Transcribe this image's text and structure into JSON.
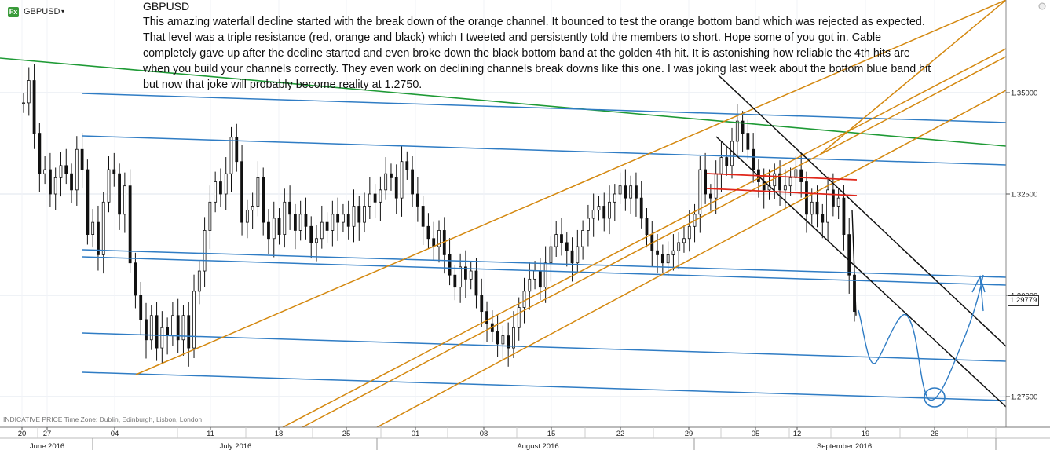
{
  "header": {
    "badge": "Fx",
    "symbol": "GBPUSD",
    "caret": "▾"
  },
  "annotation": {
    "title": "GBPUSD",
    "body": "This amazing waterfall decline started with the break down of the orange channel. It bounced to test the orange bottom band which was rejected as expected. That level was a triple resistance (red, orange and black) which I tweeted and persistently told the members to short. Hope some of you got in. Cable completely gave up after the decline started and even broke down the black bottom band at the golden 4th hit. It is astonishing how reliable the 4th hits are when you build your channels correctly. They even work on declining channels break downs like this one. I was joking last week about the bottom blue band hit but now that joke will probably become reality at 1.2750."
  },
  "footer": {
    "note": "INDICATIVE PRICE   Time Zone: Dublin, Edinburgh, Lisbon, London"
  },
  "price_flag": "1.29779",
  "colors": {
    "blue": "#2f7cc4",
    "orange": "#d4880f",
    "green": "#1e9a35",
    "red": "#e0261a",
    "black": "#111111",
    "candle": "#111111",
    "grid": "#dfe5ee"
  },
  "chart_data": {
    "type": "line",
    "title": "GBPUSD",
    "y_axis": {
      "ticks": [
        "1.35000",
        "1.32500",
        "1.30000",
        "1.27500"
      ],
      "ylim": [
        1.2678,
        1.365
      ]
    },
    "x_axis": {
      "day_ticks": [
        "20",
        "27",
        "04",
        "11",
        "18",
        "25",
        "01",
        "08",
        "15",
        "22",
        "29",
        "05",
        "12",
        "19",
        "26"
      ],
      "months": [
        "June 2016",
        "July 2016",
        "August 2016",
        "September 2016"
      ]
    },
    "close_series": [
      1.3475,
      1.353,
      1.34,
      1.33,
      1.331,
      1.325,
      1.329,
      1.332,
      1.33,
      1.326,
      1.336,
      1.331,
      1.315,
      1.318,
      1.31,
      1.323,
      1.331,
      1.33,
      1.32,
      1.327,
      1.308,
      1.3,
      1.294,
      1.289,
      1.295,
      1.287,
      1.292,
      1.29,
      1.295,
      1.289,
      1.295,
      1.287,
      1.301,
      1.306,
      1.316,
      1.323,
      1.328,
      1.325,
      1.33,
      1.339,
      1.333,
      1.318,
      1.321,
      1.322,
      1.329,
      1.318,
      1.314,
      1.319,
      1.315,
      1.323,
      1.32,
      1.316,
      1.32,
      1.317,
      1.313,
      1.314,
      1.318,
      1.316,
      1.32,
      1.318,
      1.32,
      1.317,
      1.322,
      1.318,
      1.322,
      1.325,
      1.323,
      1.326,
      1.33,
      1.329,
      1.324,
      1.333,
      1.331,
      1.325,
      1.322,
      1.317,
      1.314,
      1.312,
      1.316,
      1.31,
      1.305,
      1.302,
      1.307,
      1.304,
      1.306,
      1.3,
      1.296,
      1.293,
      1.291,
      1.288,
      1.29,
      1.287,
      1.292,
      1.297,
      1.301,
      1.304,
      1.306,
      1.302,
      1.308,
      1.312,
      1.315,
      1.313,
      1.311,
      1.308,
      1.312,
      1.316,
      1.319,
      1.321,
      1.322,
      1.319,
      1.323,
      1.325,
      1.327,
      1.324,
      1.327,
      1.324,
      1.319,
      1.315,
      1.311,
      1.31,
      1.308,
      1.31,
      1.311,
      1.313,
      1.314,
      1.317,
      1.32,
      1.331,
      1.325,
      1.324,
      1.33,
      1.334,
      1.332,
      1.338,
      1.343,
      1.34,
      1.336,
      1.331,
      1.328,
      1.326,
      1.327,
      1.33,
      1.326,
      1.327,
      1.329,
      1.331,
      1.328,
      1.32,
      1.323,
      1.32,
      1.318,
      1.326,
      1.322,
      1.324,
      1.315,
      1.305,
      1.296
    ],
    "last_price": 1.29779,
    "trendlines": [
      {
        "color": "green",
        "label": "declining resistance"
      },
      {
        "color": "blue",
        "label": "horizontal-ish support/resistance bands"
      },
      {
        "color": "orange",
        "label": "rising channel"
      },
      {
        "color": "black",
        "label": "declining channel"
      },
      {
        "color": "red",
        "label": "resistance zone"
      }
    ],
    "projection_target": 1.275
  }
}
